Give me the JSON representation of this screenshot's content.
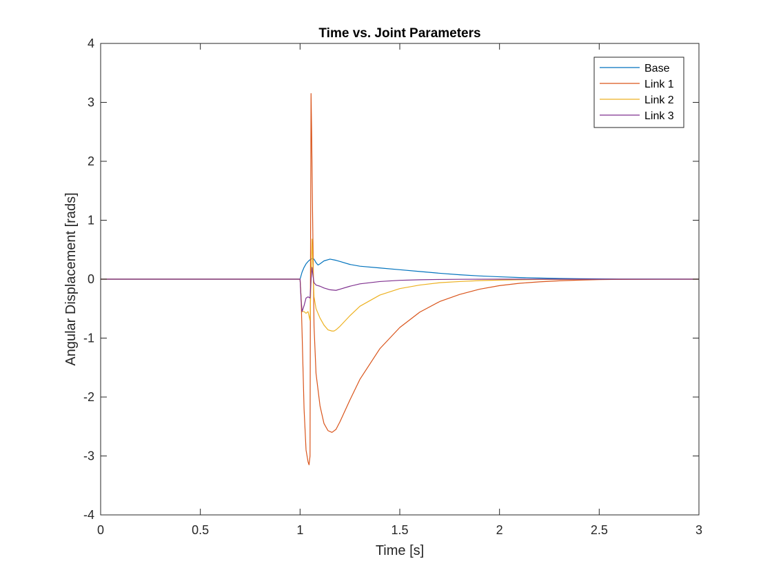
{
  "chart_data": {
    "type": "line",
    "title": "Time vs. Joint Parameters",
    "xlabel": "Time [s]",
    "ylabel": "Angular Displacement [rads]",
    "xlim": [
      0,
      3
    ],
    "ylim": [
      -4,
      4
    ],
    "xticks": [
      0,
      0.5,
      1,
      1.5,
      2,
      2.5,
      3
    ],
    "xtick_labels": [
      "0",
      "0.5",
      "1",
      "1.5",
      "2",
      "2.5",
      "3"
    ],
    "yticks": [
      -4,
      -3,
      -2,
      -1,
      0,
      1,
      2,
      3,
      4
    ],
    "ytick_labels": [
      "-4",
      "-3",
      "-2",
      "-1",
      "0",
      "1",
      "2",
      "3",
      "4"
    ],
    "grid": false,
    "legend_position": "top-right",
    "series": [
      {
        "name": "Base",
        "color": "#0072BD",
        "x": [
          0,
          1.0,
          1.01,
          1.02,
          1.03,
          1.04,
          1.05,
          1.06,
          1.07,
          1.08,
          1.09,
          1.1,
          1.12,
          1.15,
          1.18,
          1.2,
          1.25,
          1.3,
          1.4,
          1.5,
          1.6,
          1.7,
          1.8,
          1.9,
          2.0,
          2.1,
          2.2,
          2.3,
          2.4,
          2.5,
          2.6,
          2.8,
          3.0
        ],
        "y": [
          0,
          0,
          0.12,
          0.2,
          0.26,
          0.3,
          0.33,
          0.35,
          0.34,
          0.28,
          0.24,
          0.26,
          0.31,
          0.34,
          0.32,
          0.3,
          0.25,
          0.22,
          0.19,
          0.16,
          0.13,
          0.1,
          0.075,
          0.055,
          0.04,
          0.028,
          0.019,
          0.012,
          0.007,
          0.004,
          0.002,
          0.001,
          0.0
        ]
      },
      {
        "name": "Link 1",
        "color": "#D95319",
        "x": [
          0,
          1.0,
          1.005,
          1.01,
          1.02,
          1.03,
          1.04,
          1.045,
          1.05,
          1.052,
          1.055,
          1.058,
          1.062,
          1.067,
          1.07,
          1.08,
          1.1,
          1.12,
          1.14,
          1.16,
          1.18,
          1.2,
          1.25,
          1.3,
          1.4,
          1.5,
          1.6,
          1.7,
          1.8,
          1.9,
          2.0,
          2.1,
          2.2,
          2.3,
          2.4,
          2.5,
          2.6,
          2.8,
          3.0
        ],
        "y": [
          0,
          0,
          -0.3,
          -0.9,
          -2.2,
          -2.9,
          -3.1,
          -3.15,
          -3.0,
          0.0,
          3.15,
          2.5,
          1.3,
          0.0,
          -0.8,
          -1.6,
          -2.15,
          -2.45,
          -2.57,
          -2.6,
          -2.55,
          -2.42,
          -2.05,
          -1.7,
          -1.18,
          -0.82,
          -0.56,
          -0.38,
          -0.26,
          -0.17,
          -0.11,
          -0.07,
          -0.045,
          -0.028,
          -0.016,
          -0.008,
          -0.004,
          -0.001,
          0.0
        ]
      },
      {
        "name": "Link 2",
        "color": "#EDB120",
        "x": [
          0,
          1.0,
          1.005,
          1.01,
          1.02,
          1.03,
          1.04,
          1.05,
          1.055,
          1.06,
          1.065,
          1.07,
          1.08,
          1.1,
          1.12,
          1.14,
          1.16,
          1.17,
          1.18,
          1.2,
          1.25,
          1.3,
          1.4,
          1.5,
          1.6,
          1.7,
          1.8,
          1.9,
          2.0,
          2.1,
          2.2,
          2.3,
          2.4,
          2.5,
          2.6,
          2.8,
          3.0
        ],
        "y": [
          0,
          0,
          -0.3,
          -0.55,
          -0.55,
          -0.58,
          -0.55,
          -0.7,
          0.0,
          0.68,
          0.2,
          -0.3,
          -0.5,
          -0.66,
          -0.78,
          -0.86,
          -0.88,
          -0.88,
          -0.86,
          -0.8,
          -0.62,
          -0.46,
          -0.27,
          -0.16,
          -0.1,
          -0.06,
          -0.04,
          -0.025,
          -0.016,
          -0.01,
          -0.006,
          -0.004,
          -0.002,
          -0.001,
          0.0,
          0.0,
          0.0
        ]
      },
      {
        "name": "Link 3",
        "color": "#7E2F8E",
        "x": [
          0,
          1.0,
          1.005,
          1.01,
          1.02,
          1.03,
          1.04,
          1.05,
          1.055,
          1.06,
          1.065,
          1.07,
          1.08,
          1.1,
          1.12,
          1.15,
          1.18,
          1.2,
          1.25,
          1.3,
          1.4,
          1.5,
          1.6,
          1.7,
          1.8,
          2.0,
          2.2,
          2.5,
          3.0
        ],
        "y": [
          0,
          0,
          -0.35,
          -0.55,
          -0.45,
          -0.32,
          -0.3,
          -0.32,
          0.0,
          0.2,
          0.05,
          -0.06,
          -0.1,
          -0.12,
          -0.15,
          -0.18,
          -0.19,
          -0.17,
          -0.12,
          -0.08,
          -0.04,
          -0.02,
          -0.01,
          -0.005,
          -0.002,
          0.0,
          0.0,
          0.0,
          0.0
        ]
      }
    ]
  }
}
